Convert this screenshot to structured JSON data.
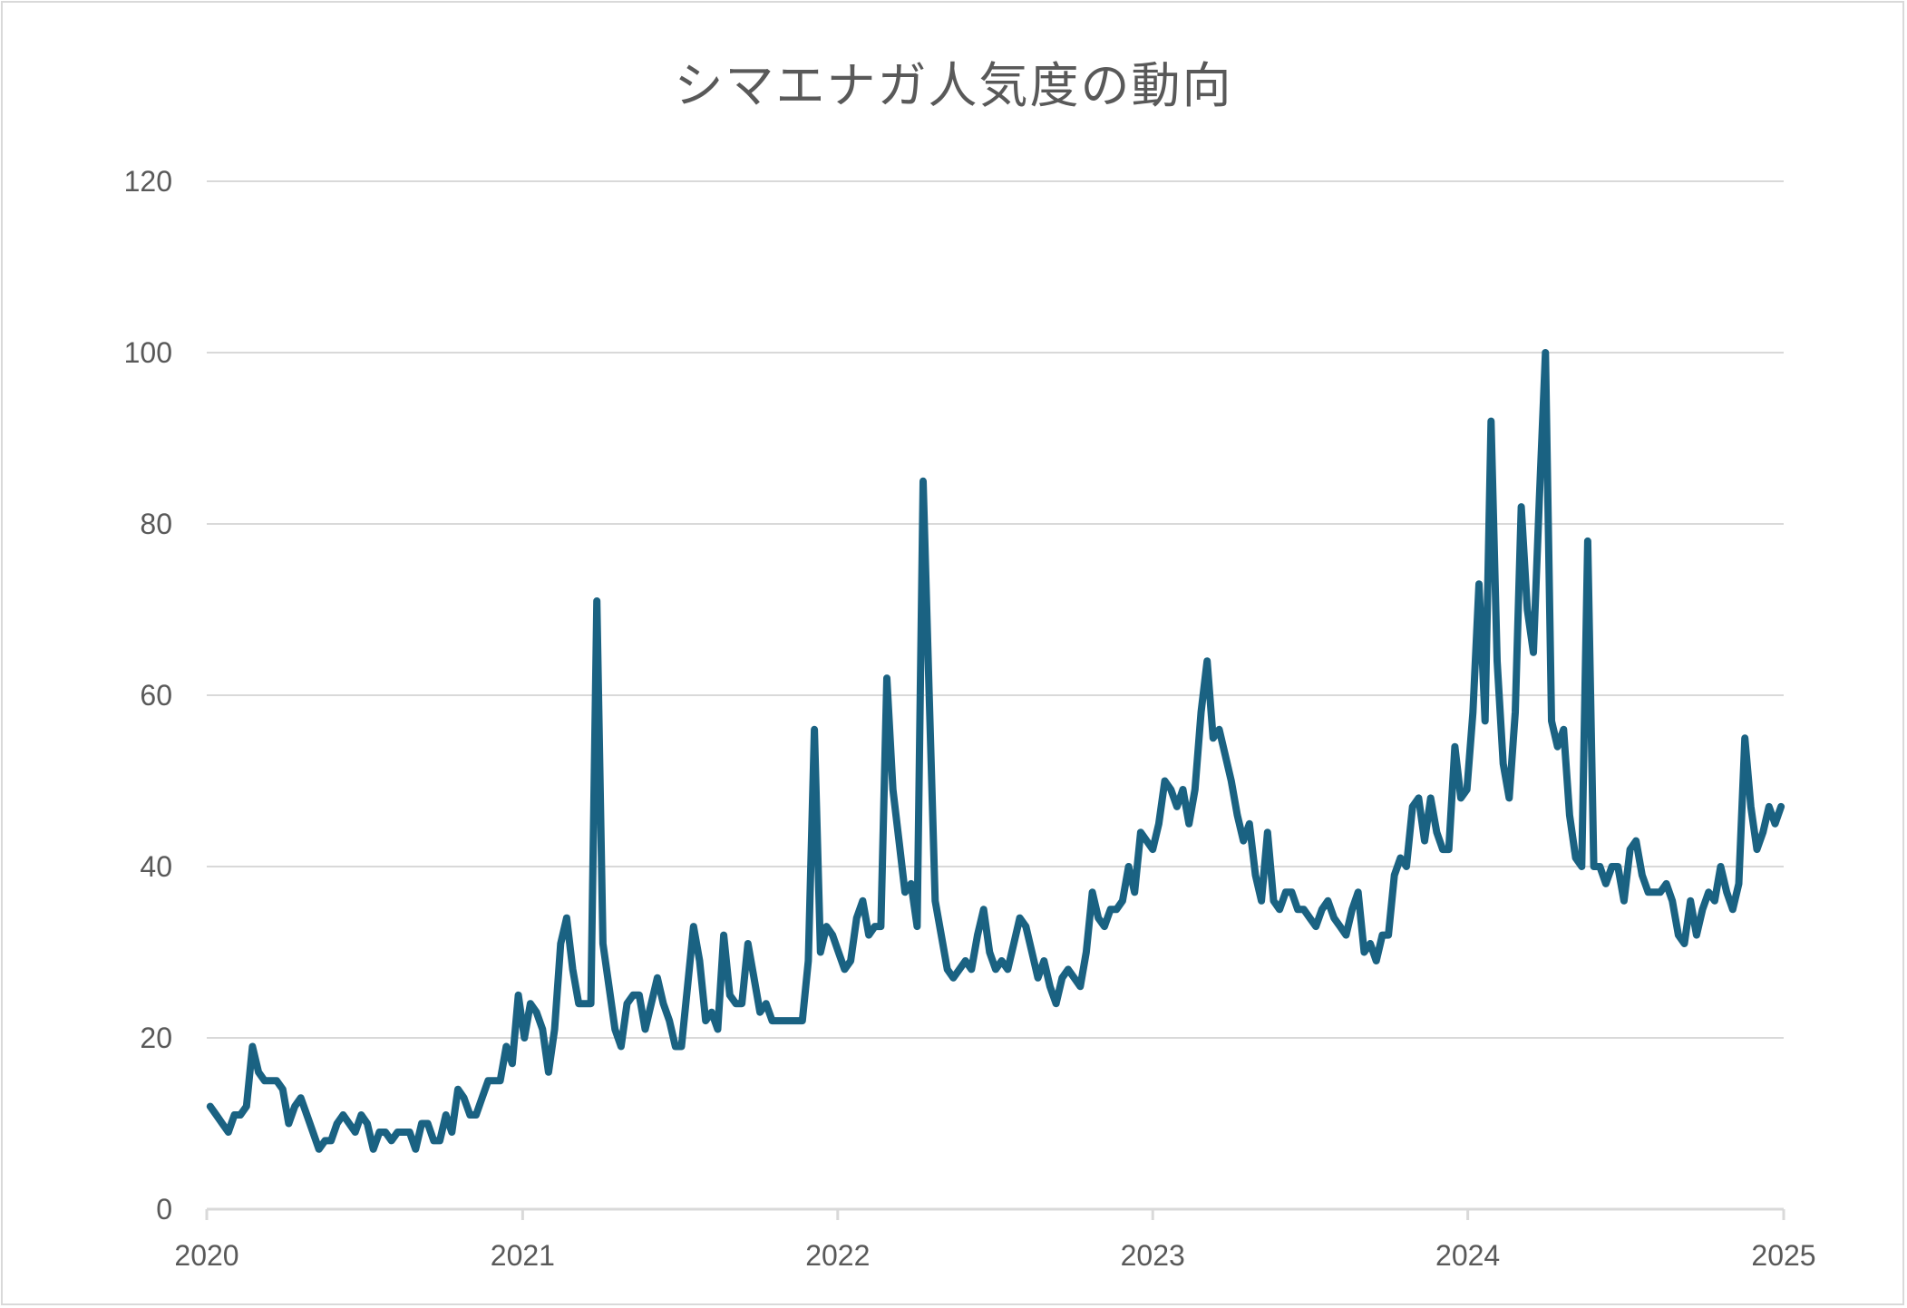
{
  "chart_data": {
    "type": "line",
    "title": "シマエナガ人気度の動向",
    "xlabel": "",
    "ylabel": "",
    "x_start": "2020-01-05",
    "frequency": "weekly",
    "xlim": [
      "2020-01-01",
      "2025-01-01"
    ],
    "x_ticks": [
      "2020",
      "2021",
      "2022",
      "2023",
      "2024",
      "2025"
    ],
    "ylim": [
      0,
      120
    ],
    "y_ticks": [
      "0",
      "20",
      "40",
      "60",
      "80",
      "100",
      "120"
    ],
    "grid": "horizontal",
    "legend": "none",
    "line_color": "#1a6282",
    "gridline_color": "#d9d9d9",
    "values": [
      12,
      11,
      10,
      9,
      11,
      11,
      12,
      19,
      16,
      15,
      15,
      15,
      14,
      10,
      12,
      13,
      11,
      9,
      7,
      8,
      8,
      10,
      11,
      10,
      9,
      11,
      10,
      7,
      9,
      9,
      8,
      9,
      9,
      9,
      7,
      10,
      10,
      8,
      8,
      11,
      9,
      14,
      13,
      11,
      11,
      13,
      15,
      15,
      15,
      19,
      17,
      25,
      20,
      24,
      23,
      21,
      16,
      21,
      31,
      34,
      28,
      24,
      24,
      24,
      71,
      31,
      26,
      21,
      19,
      24,
      25,
      25,
      21,
      24,
      27,
      24,
      22,
      19,
      19,
      26,
      33,
      29,
      22,
      23,
      21,
      32,
      25,
      24,
      24,
      31,
      27,
      23,
      24,
      22,
      22,
      22,
      22,
      22,
      22,
      29,
      56,
      30,
      33,
      32,
      30,
      28,
      29,
      34,
      36,
      32,
      33,
      33,
      62,
      49,
      43,
      37,
      38,
      33,
      85,
      60,
      36,
      32,
      28,
      27,
      28,
      29,
      28,
      32,
      35,
      30,
      28,
      29,
      28,
      31,
      34,
      33,
      30,
      27,
      29,
      26,
      24,
      27,
      28,
      27,
      26,
      30,
      37,
      34,
      33,
      35,
      35,
      36,
      40,
      37,
      44,
      43,
      42,
      45,
      50,
      49,
      47,
      49,
      45,
      49,
      58,
      64,
      55,
      56,
      53,
      50,
      46,
      43,
      45,
      39,
      36,
      44,
      36,
      35,
      37,
      37,
      35,
      35,
      34,
      33,
      35,
      36,
      34,
      33,
      32,
      35,
      37,
      30,
      31,
      29,
      32,
      32,
      39,
      41,
      40,
      47,
      48,
      43,
      48,
      44,
      42,
      42,
      54,
      48,
      49,
      58,
      73,
      57,
      92,
      64,
      52,
      48,
      58,
      82,
      70,
      65,
      83,
      100,
      57,
      54,
      56,
      46,
      41,
      40,
      78,
      40,
      40,
      38,
      40,
      40,
      36,
      42,
      43,
      39,
      37,
      37,
      37,
      38,
      36,
      32,
      31,
      36,
      32,
      35,
      37,
      36,
      40,
      37,
      35,
      38,
      55,
      47,
      42,
      44,
      47,
      45,
      47
    ]
  }
}
